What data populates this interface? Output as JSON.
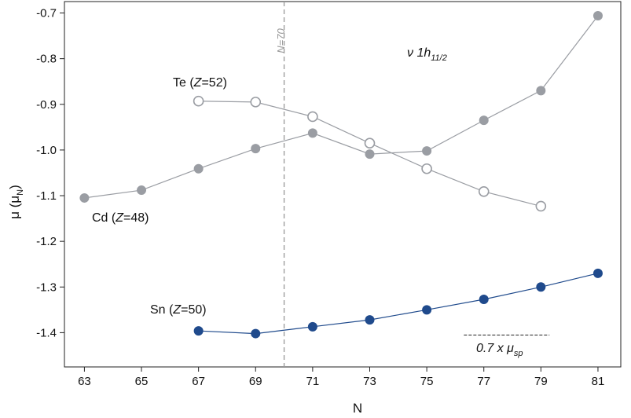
{
  "chart_data": {
    "type": "line",
    "title": "",
    "xlabel": "N",
    "ylabel": "μ (μ",
    "ylabel_sub": "N",
    "ylabel_close": ")",
    "xlim": [
      62.3,
      81.8
    ],
    "ylim": [
      -1.475,
      -0.675
    ],
    "xticks": [
      "63",
      "65",
      "67",
      "69",
      "71",
      "73",
      "75",
      "77",
      "79",
      "81"
    ],
    "xtick_values": [
      63,
      65,
      67,
      69,
      71,
      73,
      75,
      77,
      79,
      81
    ],
    "yticks": [
      "-0.7",
      "-0.8",
      "-0.9",
      "-1.0",
      "-1.1",
      "-1.2",
      "-1.3",
      "-1.4"
    ],
    "ytick_values": [
      -0.7,
      -0.8,
      -0.9,
      -1.0,
      -1.1,
      -1.2,
      -1.3,
      -1.4
    ],
    "grid": false,
    "colors": {
      "gray": "#9a9da3",
      "blue": "#1f4a8c",
      "dashed": "#999999"
    },
    "series": [
      {
        "name": "Cd (Z=48)",
        "marker": "filled",
        "color": "#9a9da3",
        "x": [
          63,
          65,
          67,
          69,
          71,
          73,
          75,
          77,
          79,
          81
        ],
        "y": [
          -1.105,
          -1.088,
          -1.041,
          -0.997,
          -0.963,
          -1.009,
          -1.002,
          -0.935,
          -0.87,
          -0.706
        ]
      },
      {
        "name": "Te (Z=52)",
        "marker": "open",
        "color": "#9a9da3",
        "x": [
          67,
          69,
          71,
          73,
          75,
          77,
          79
        ],
        "y": [
          -0.893,
          -0.895,
          -0.927,
          -0.985,
          -1.041,
          -1.091,
          -1.123
        ]
      },
      {
        "name": "Sn (Z=50)",
        "marker": "filled",
        "color": "#1f4a8c",
        "x": [
          67,
          69,
          71,
          73,
          75,
          77,
          79,
          81
        ],
        "y": [
          -1.396,
          -1.402,
          -1.387,
          -1.372,
          -1.35,
          -1.327,
          -1.3,
          -1.27
        ]
      }
    ],
    "annotations": {
      "te_label": {
        "pre": "Te (",
        "italic": "Z",
        "post": "=52)"
      },
      "cd_label": {
        "pre": "Cd (",
        "italic": "Z",
        "post": "=48)"
      },
      "sn_label": {
        "pre": "Sn (",
        "italic": "Z",
        "post": "=50)"
      },
      "orbital": {
        "main": "ν 1h",
        "sub": "11/2"
      },
      "sp": {
        "main": "0.7 x μ",
        "sub": "sp"
      },
      "n70": {
        "text": "N=70",
        "x": 70
      },
      "sp_line": {
        "x1": 76.3,
        "x2": 79.3,
        "y": -1.405
      }
    }
  }
}
